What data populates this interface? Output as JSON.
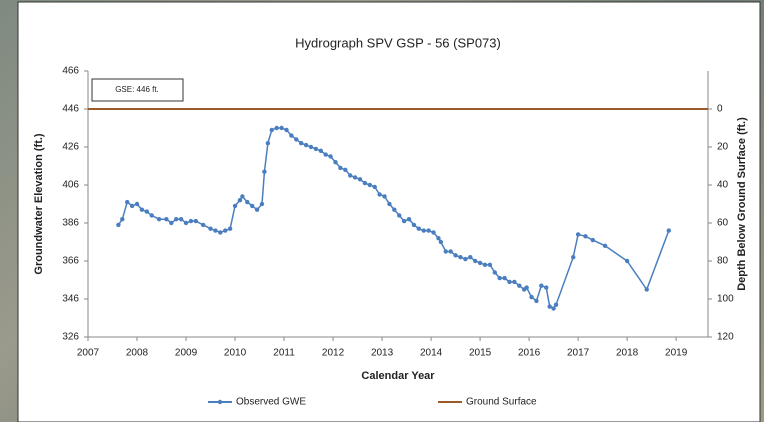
{
  "chart_data": {
    "type": "line",
    "title": "Hydrograph SPV GSP - 56 (SP073)",
    "x_label": "Calendar Year",
    "y_label": "Groundwater Elevation (ft.)",
    "y2_label": "Depth Below Ground Surface (ft.)",
    "annotation": "GSE:  446 ft.",
    "xlim": [
      2007,
      2019.65
    ],
    "xticks": [
      2007,
      2008,
      2009,
      2010,
      2011,
      2012,
      2013,
      2014,
      2015,
      2016,
      2017,
      2018,
      2019
    ],
    "ylim": [
      326,
      466
    ],
    "yticks": [
      326,
      346,
      366,
      386,
      406,
      426,
      446,
      466
    ],
    "y2lim": [
      -20,
      120
    ],
    "y2_inverted": true,
    "y2ticks": [
      0,
      20,
      40,
      60,
      80,
      100,
      120
    ],
    "legend": "bottom",
    "series": [
      {
        "name": "Observed GWE",
        "color": "#4a7ebf",
        "marker": true,
        "x": [
          2007.62,
          2007.7,
          2007.8,
          2007.9,
          2008.0,
          2008.1,
          2008.2,
          2008.3,
          2008.45,
          2008.6,
          2008.7,
          2008.8,
          2008.9,
          2009.0,
          2009.1,
          2009.2,
          2009.35,
          2009.5,
          2009.6,
          2009.7,
          2009.8,
          2009.9,
          2010.0,
          2010.1,
          2010.15,
          2010.25,
          2010.35,
          2010.45,
          2010.55,
          2010.6,
          2010.67,
          2010.75,
          2010.85,
          2010.95,
          2011.05,
          2011.15,
          2011.25,
          2011.35,
          2011.45,
          2011.55,
          2011.65,
          2011.75,
          2011.85,
          2011.95,
          2012.05,
          2012.15,
          2012.25,
          2012.35,
          2012.45,
          2012.55,
          2012.65,
          2012.75,
          2012.85,
          2012.95,
          2013.05,
          2013.15,
          2013.25,
          2013.35,
          2013.45,
          2013.55,
          2013.65,
          2013.75,
          2013.85,
          2013.95,
          2014.05,
          2014.15,
          2014.2,
          2014.3,
          2014.4,
          2014.5,
          2014.6,
          2014.7,
          2014.8,
          2014.9,
          2015.0,
          2015.1,
          2015.2,
          2015.3,
          2015.4,
          2015.5,
          2015.6,
          2015.7,
          2015.8,
          2015.9,
          2015.95,
          2016.05,
          2016.15,
          2016.25,
          2016.35,
          2016.42,
          2016.5,
          2016.55,
          2016.9,
          2017.0,
          2017.15,
          2017.3,
          2017.55,
          2018.0,
          2018.4,
          2018.85
        ],
        "values": [
          385,
          388,
          397,
          395,
          396,
          393,
          392,
          390,
          388,
          388,
          386,
          388,
          388,
          386,
          387,
          387,
          385,
          383,
          382,
          381,
          382,
          383,
          395,
          398,
          400,
          397,
          395,
          393,
          396,
          413,
          428,
          435,
          436,
          436,
          435,
          432,
          430,
          428,
          427,
          426,
          425,
          424,
          422,
          421,
          418,
          415,
          414,
          411,
          410,
          409,
          407,
          406,
          405,
          401,
          400,
          396,
          393,
          390,
          387,
          388,
          385,
          383,
          382,
          382,
          381,
          378,
          376,
          371,
          371,
          369,
          368,
          367,
          368,
          366,
          365,
          364,
          364,
          360,
          357,
          357,
          355,
          355,
          353,
          351,
          352,
          347,
          345,
          353,
          352,
          342,
          341,
          343,
          368,
          380,
          379,
          377,
          374,
          366,
          351,
          382
        ]
      },
      {
        "name": "Ground Surface",
        "color": "#9c5a2a",
        "marker": false,
        "x": [
          2007,
          2019.65
        ],
        "values": [
          446,
          446
        ]
      }
    ]
  }
}
